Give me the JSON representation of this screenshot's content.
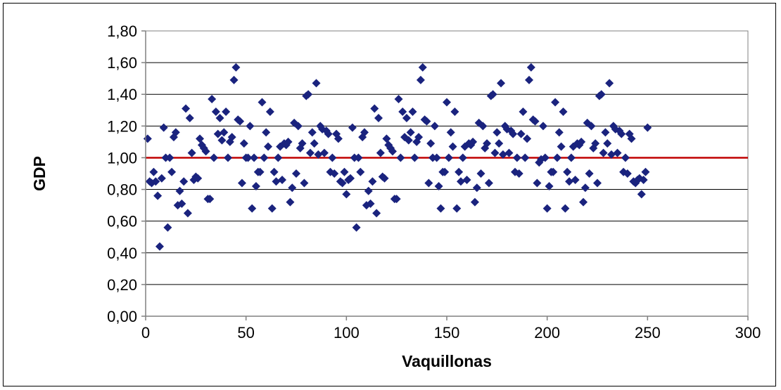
{
  "chart_data": {
    "type": "scatter",
    "xlabel": "Vaquillonas",
    "ylabel": "GDP",
    "xlim": [
      0,
      300
    ],
    "ylim": [
      0,
      1.8
    ],
    "x_ticks": [
      0,
      50,
      100,
      150,
      200,
      250,
      300
    ],
    "x_tick_labels": [
      "0",
      "50",
      "100",
      "150",
      "200",
      "250",
      "300"
    ],
    "y_ticks": [
      0,
      0.2,
      0.4,
      0.6,
      0.8,
      1.0,
      1.2,
      1.4,
      1.6,
      1.8
    ],
    "y_tick_labels": [
      "0,00",
      "0,20",
      "0,40",
      "0,60",
      "0,80",
      "1,00",
      "1,20",
      "1,40",
      "1,60",
      "1,80"
    ],
    "grid": "horizontal",
    "legend": "none",
    "marker": "diamond",
    "marker_color": "#1a237e",
    "reference_line": {
      "y": 1.0,
      "color": "#c00000"
    },
    "points": [
      [
        1,
        1.12
      ],
      [
        2,
        0.85
      ],
      [
        3,
        0.84
      ],
      [
        4,
        0.91
      ],
      [
        5,
        0.85
      ],
      [
        6,
        0.76
      ],
      [
        7,
        0.44
      ],
      [
        8,
        0.87
      ],
      [
        9,
        1.19
      ],
      [
        10,
        1.0
      ],
      [
        11,
        0.56
      ],
      [
        12,
        1.0
      ],
      [
        13,
        0.91
      ],
      [
        14,
        1.13
      ],
      [
        15,
        1.16
      ],
      [
        16,
        0.7
      ],
      [
        17,
        0.79
      ],
      [
        18,
        0.71
      ],
      [
        19,
        0.85
      ],
      [
        20,
        1.31
      ],
      [
        21,
        0.65
      ],
      [
        22,
        1.25
      ],
      [
        23,
        1.03
      ],
      [
        24,
        0.86
      ],
      [
        25,
        0.88
      ],
      [
        26,
        0.87
      ],
      [
        27,
        1.12
      ],
      [
        28,
        1.08
      ],
      [
        29,
        1.06
      ],
      [
        30,
        1.04
      ],
      [
        31,
        0.74
      ],
      [
        32,
        0.74
      ],
      [
        33,
        1.37
      ],
      [
        34,
        1.0
      ],
      [
        35,
        1.29
      ],
      [
        36,
        1.15
      ],
      [
        37,
        1.25
      ],
      [
        38,
        1.11
      ],
      [
        39,
        1.16
      ],
      [
        40,
        1.29
      ],
      [
        41,
        1.0
      ],
      [
        42,
        1.1
      ],
      [
        43,
        1.13
      ],
      [
        44,
        1.49
      ],
      [
        45,
        1.57
      ],
      [
        46,
        1.24
      ],
      [
        47,
        1.23
      ],
      [
        48,
        0.84
      ],
      [
        49,
        1.09
      ],
      [
        50,
        1.0
      ],
      [
        51,
        1.0
      ],
      [
        52,
        1.2
      ],
      [
        53,
        0.68
      ],
      [
        54,
        1.0
      ],
      [
        55,
        0.82
      ],
      [
        56,
        0.91
      ],
      [
        57,
        0.91
      ],
      [
        58,
        1.35
      ],
      [
        59,
        1.0
      ],
      [
        60,
        1.16
      ],
      [
        61,
        1.07
      ],
      [
        62,
        1.29
      ],
      [
        63,
        0.68
      ],
      [
        64,
        0.91
      ],
      [
        65,
        0.85
      ],
      [
        66,
        1.0
      ],
      [
        67,
        1.07
      ],
      [
        68,
        0.86
      ],
      [
        69,
        1.09
      ],
      [
        70,
        1.08
      ],
      [
        71,
        1.1
      ],
      [
        72,
        0.72
      ],
      [
        73,
        0.81
      ],
      [
        74,
        1.22
      ],
      [
        75,
        0.9
      ],
      [
        76,
        1.2
      ],
      [
        77,
        1.06
      ],
      [
        78,
        1.09
      ],
      [
        79,
        0.84
      ],
      [
        80,
        1.39
      ],
      [
        81,
        1.4
      ],
      [
        82,
        1.03
      ],
      [
        83,
        1.16
      ],
      [
        84,
        1.09
      ],
      [
        85,
        1.47
      ],
      [
        86,
        1.02
      ],
      [
        87,
        1.2
      ],
      [
        88,
        1.18
      ],
      [
        89,
        1.03
      ],
      [
        90,
        1.17
      ],
      [
        91,
        1.15
      ],
      [
        92,
        0.91
      ],
      [
        93,
        1.0
      ],
      [
        94,
        0.9
      ],
      [
        95,
        1.15
      ],
      [
        96,
        1.12
      ],
      [
        97,
        0.85
      ],
      [
        98,
        0.84
      ],
      [
        99,
        0.91
      ],
      [
        100,
        0.77
      ],
      [
        101,
        0.86
      ],
      [
        102,
        0.87
      ],
      [
        103,
        1.19
      ],
      [
        104,
        1.0
      ],
      [
        105,
        0.56
      ],
      [
        106,
        1.0
      ],
      [
        107,
        0.91
      ],
      [
        108,
        1.13
      ],
      [
        109,
        1.16
      ],
      [
        110,
        0.7
      ],
      [
        111,
        0.79
      ],
      [
        112,
        0.71
      ],
      [
        113,
        0.85
      ],
      [
        114,
        1.31
      ],
      [
        115,
        0.65
      ],
      [
        116,
        1.25
      ],
      [
        117,
        1.03
      ],
      [
        118,
        0.88
      ],
      [
        119,
        0.87
      ],
      [
        120,
        1.12
      ],
      [
        121,
        1.08
      ],
      [
        122,
        1.06
      ],
      [
        123,
        1.04
      ],
      [
        124,
        0.74
      ],
      [
        125,
        0.74
      ],
      [
        126,
        1.37
      ],
      [
        127,
        1.0
      ],
      [
        128,
        1.29
      ],
      [
        129,
        1.13
      ],
      [
        130,
        1.25
      ],
      [
        131,
        1.11
      ],
      [
        132,
        1.16
      ],
      [
        133,
        1.29
      ],
      [
        134,
        1.0
      ],
      [
        135,
        1.1
      ],
      [
        136,
        1.13
      ],
      [
        137,
        1.49
      ],
      [
        138,
        1.57
      ],
      [
        139,
        1.24
      ],
      [
        140,
        1.23
      ],
      [
        141,
        0.84
      ],
      [
        142,
        1.09
      ],
      [
        143,
        1.0
      ],
      [
        144,
        1.2
      ],
      [
        145,
        1.0
      ],
      [
        146,
        0.82
      ],
      [
        147,
        0.68
      ],
      [
        148,
        0.91
      ],
      [
        149,
        0.91
      ],
      [
        150,
        1.35
      ],
      [
        151,
        1.0
      ],
      [
        152,
        1.16
      ],
      [
        153,
        1.07
      ],
      [
        154,
        1.29
      ],
      [
        155,
        0.68
      ],
      [
        156,
        0.91
      ],
      [
        157,
        0.85
      ],
      [
        158,
        1.0
      ],
      [
        159,
        1.07
      ],
      [
        160,
        0.86
      ],
      [
        161,
        1.09
      ],
      [
        162,
        1.08
      ],
      [
        163,
        1.1
      ],
      [
        164,
        0.72
      ],
      [
        165,
        0.81
      ],
      [
        166,
        1.22
      ],
      [
        167,
        0.9
      ],
      [
        168,
        1.2
      ],
      [
        169,
        1.06
      ],
      [
        170,
        1.09
      ],
      [
        171,
        0.84
      ],
      [
        172,
        1.39
      ],
      [
        173,
        1.4
      ],
      [
        174,
        1.03
      ],
      [
        175,
        1.16
      ],
      [
        176,
        1.09
      ],
      [
        177,
        1.47
      ],
      [
        178,
        1.02
      ],
      [
        179,
        1.2
      ],
      [
        180,
        1.18
      ],
      [
        181,
        1.03
      ],
      [
        182,
        1.17
      ],
      [
        183,
        1.15
      ],
      [
        184,
        0.91
      ],
      [
        185,
        1.0
      ],
      [
        186,
        0.9
      ],
      [
        187,
        1.15
      ],
      [
        188,
        1.29
      ],
      [
        189,
        1.0
      ],
      [
        190,
        1.12
      ],
      [
        191,
        1.49
      ],
      [
        192,
        1.57
      ],
      [
        193,
        1.24
      ],
      [
        194,
        1.23
      ],
      [
        195,
        0.84
      ],
      [
        196,
        0.97
      ],
      [
        197,
        0.99
      ],
      [
        198,
        1.2
      ],
      [
        199,
        1.0
      ],
      [
        200,
        0.68
      ],
      [
        201,
        0.82
      ],
      [
        202,
        0.91
      ],
      [
        203,
        0.91
      ],
      [
        204,
        1.35
      ],
      [
        205,
        1.0
      ],
      [
        206,
        1.16
      ],
      [
        207,
        1.07
      ],
      [
        208,
        1.29
      ],
      [
        209,
        0.68
      ],
      [
        210,
        0.91
      ],
      [
        211,
        0.85
      ],
      [
        212,
        1.0
      ],
      [
        213,
        1.07
      ],
      [
        214,
        0.86
      ],
      [
        215,
        1.09
      ],
      [
        216,
        1.08
      ],
      [
        217,
        1.1
      ],
      [
        218,
        0.72
      ],
      [
        219,
        0.81
      ],
      [
        220,
        1.22
      ],
      [
        221,
        0.9
      ],
      [
        222,
        1.2
      ],
      [
        223,
        1.06
      ],
      [
        224,
        1.09
      ],
      [
        225,
        0.84
      ],
      [
        226,
        1.39
      ],
      [
        227,
        1.4
      ],
      [
        228,
        1.03
      ],
      [
        229,
        1.16
      ],
      [
        230,
        1.09
      ],
      [
        231,
        1.47
      ],
      [
        232,
        1.02
      ],
      [
        233,
        1.2
      ],
      [
        234,
        1.18
      ],
      [
        235,
        1.03
      ],
      [
        236,
        1.17
      ],
      [
        237,
        1.15
      ],
      [
        238,
        0.91
      ],
      [
        239,
        1.0
      ],
      [
        240,
        0.9
      ],
      [
        241,
        1.15
      ],
      [
        242,
        1.12
      ],
      [
        243,
        0.85
      ],
      [
        244,
        0.84
      ],
      [
        245,
        0.86
      ],
      [
        246,
        0.87
      ],
      [
        247,
        0.77
      ],
      [
        248,
        0.86
      ],
      [
        249,
        0.91
      ],
      [
        250,
        1.19
      ]
    ]
  }
}
